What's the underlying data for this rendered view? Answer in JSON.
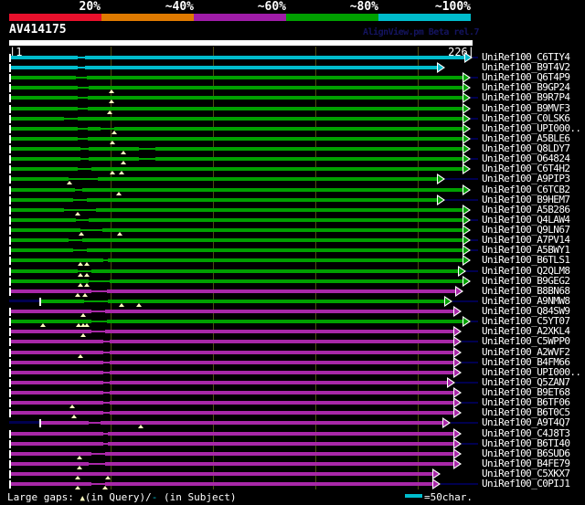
{
  "header": {
    "title": "AV414175",
    "watermark": "AlignView.pm Beta rel.7"
  },
  "scale_bar": {
    "labels": [
      "20%",
      "~40%",
      "~60%",
      "~80%",
      "~100%"
    ],
    "segment_colors": [
      "#e8102c",
      "#df7a00",
      "#a01ca8",
      "#00a000",
      "#00bccc"
    ]
  },
  "ruler": {
    "start_label": "|1",
    "end_label": "226|"
  },
  "footer": {
    "gaps_prefix": "Large gaps: ",
    "triangle_glyph": "▲",
    "gaps_mid": "(in Query)/",
    "dash_glyph": "-",
    "gaps_suffix": " (in Subject)",
    "scale_hint": "=50char."
  },
  "colors": {
    "cyan": "#00bccc",
    "green": "#00a000",
    "purple": "#a828a8",
    "navy": "#00004f",
    "tick": "#ffffff",
    "triangle": "#ffffc0",
    "gridline": "#4c4c10"
  },
  "rows": [
    {
      "label": "UniRef100_C6TIY4",
      "color": "cyan",
      "s": 10,
      "e": 517,
      "gaps": [
        [
          85,
          93
        ]
      ],
      "tris": [],
      "np": null,
      "ns": 523
    },
    {
      "label": "UniRef100_B9T4V2",
      "color": "cyan",
      "s": 10,
      "e": 487,
      "gaps": [
        [
          85,
          93
        ]
      ],
      "tris": [],
      "np": null,
      "ns": null
    },
    {
      "label": "UniRef100_Q6T4P9",
      "color": "green",
      "s": 10,
      "e": 515,
      "gaps": [
        [
          83,
          95
        ]
      ],
      "tris": [],
      "np": null,
      "ns": 523
    },
    {
      "label": "UniRef100_B9GP24",
      "color": "green",
      "s": 10,
      "e": 515,
      "gaps": [
        [
          85,
          97
        ]
      ],
      "tris": [
        122
      ],
      "np": null,
      "ns": null
    },
    {
      "label": "UniRef100_B9R7P4",
      "color": "green",
      "s": 10,
      "e": 515,
      "gaps": [
        [
          85,
          96
        ]
      ],
      "tris": [
        122
      ],
      "np": null,
      "ns": 523
    },
    {
      "label": "UniRef100_B9MVF3",
      "color": "green",
      "s": 10,
      "e": 515,
      "gaps": [
        [
          85,
          96
        ]
      ],
      "tris": [
        120
      ],
      "np": null,
      "ns": null
    },
    {
      "label": "UniRef100_C0LSK6",
      "color": "green",
      "s": 10,
      "e": 515,
      "gaps": [
        [
          70,
          85
        ]
      ],
      "tris": [],
      "np": null,
      "ns": 523
    },
    {
      "label": "UniRef100_UPI000..",
      "color": "green",
      "s": 10,
      "e": 515,
      "gaps": [
        [
          85,
          96
        ],
        [
          110,
          125
        ]
      ],
      "tris": [
        125
      ],
      "np": null,
      "ns": null
    },
    {
      "label": "UniRef100_A5BLE6",
      "color": "green",
      "s": 10,
      "e": 515,
      "gaps": [
        [
          85,
          96
        ]
      ],
      "tris": [
        123
      ],
      "np": null,
      "ns": 523
    },
    {
      "label": "UniRef100_Q8LDY7",
      "color": "green",
      "s": 10,
      "e": 515,
      "gaps": [
        [
          88,
          97
        ],
        [
          152,
          170
        ]
      ],
      "tris": [
        135
      ],
      "np": null,
      "ns": null
    },
    {
      "label": "UniRef100_O64824",
      "color": "green",
      "s": 10,
      "e": 515,
      "gaps": [
        [
          88,
          97
        ],
        [
          152,
          170
        ]
      ],
      "tris": [
        135
      ],
      "np": null,
      "ns": 523
    },
    {
      "label": "UniRef100_C6T4H2",
      "color": "green",
      "s": 10,
      "e": 515,
      "gaps": [
        [
          85,
          100
        ]
      ],
      "tris": [
        123,
        133
      ],
      "np": null,
      "ns": null
    },
    {
      "label": "UniRef100_A9PIP3",
      "color": "green",
      "s": 10,
      "e": 487,
      "gaps": [
        [
          75,
          107
        ]
      ],
      "tris": [
        76
      ],
      "np": null,
      "ns": 523
    },
    {
      "label": "UniRef100_C6TCB2",
      "color": "green",
      "s": 10,
      "e": 515,
      "gaps": [
        [
          82,
          90
        ]
      ],
      "tris": [
        130
      ],
      "np": null,
      "ns": null
    },
    {
      "label": "UniRef100_B9HEM7",
      "color": "green",
      "s": 10,
      "e": 487,
      "gaps": [
        [
          80,
          95
        ]
      ],
      "tris": [],
      "np": null,
      "ns": 523
    },
    {
      "label": "UniRef100_A5B286",
      "color": "green",
      "s": 10,
      "e": 515,
      "gaps": [
        [
          70,
          105
        ]
      ],
      "tris": [
        85
      ],
      "np": null,
      "ns": null
    },
    {
      "label": "UniRef100_Q4LAW4",
      "color": "green",
      "s": 10,
      "e": 515,
      "gaps": [
        [
          83,
          97
        ]
      ],
      "tris": [],
      "np": null,
      "ns": 523
    },
    {
      "label": "UniRef100_Q9LN67",
      "color": "green",
      "s": 10,
      "e": 515,
      "gaps": [
        [
          88,
          112
        ]
      ],
      "tris": [
        89,
        131
      ],
      "np": null,
      "ns": null
    },
    {
      "label": "UniRef100_A7PV14",
      "color": "green",
      "s": 10,
      "e": 515,
      "gaps": [
        [
          75,
          90
        ]
      ],
      "tris": [],
      "np": null,
      "ns": 523
    },
    {
      "label": "UniRef100_A5BWY1",
      "color": "green",
      "s": 10,
      "e": 515,
      "gaps": [
        [
          80,
          95
        ]
      ],
      "tris": [],
      "np": null,
      "ns": 523
    },
    {
      "label": "UniRef100_B6TLS1",
      "color": "green",
      "s": 10,
      "e": 515,
      "gaps": [
        [
          113,
          118
        ]
      ],
      "tris": [
        88,
        95
      ],
      "np": null,
      "ns": null
    },
    {
      "label": "UniRef100_Q2QLM8",
      "color": "green",
      "s": 10,
      "e": 510,
      "gaps": [
        [
          85,
          100
        ]
      ],
      "tris": [
        88,
        95
      ],
      "np": null,
      "ns": 523
    },
    {
      "label": "UniRef100_B9GEG2",
      "color": "green",
      "s": 10,
      "e": 515,
      "gaps": [
        [
          97,
          120
        ]
      ],
      "tris": [
        88,
        95
      ],
      "np": null,
      "ns": null
    },
    {
      "label": "UniRef100_B8BN68",
      "color": "purple",
      "s": 10,
      "e": 507,
      "gaps": [
        [
          100,
          117
        ]
      ],
      "tris": [
        85,
        93
      ],
      "np": null,
      "ns": null
    },
    {
      "label": "UniRef100_A9NMW8",
      "color": "green",
      "s": 43,
      "e": 495,
      "gaps": [
        [
          92,
          118
        ]
      ],
      "tris": [
        133,
        152
      ],
      "np": 10,
      "ns": 523
    },
    {
      "label": "UniRef100_Q84SW9",
      "color": "purple",
      "s": 10,
      "e": 505,
      "gaps": [
        [
          100,
          115
        ]
      ],
      "tris": [
        91
      ],
      "np": null,
      "ns": null
    },
    {
      "label": "UniRef100_C5YT07",
      "color": "green",
      "s": 10,
      "e": 515,
      "gaps": [
        [
          100,
          117
        ]
      ],
      "tris": [
        47,
        86,
        91,
        95
      ],
      "np": null,
      "ns": 523
    },
    {
      "label": "UniRef100_A2XKL4",
      "color": "purple",
      "s": 10,
      "e": 505,
      "gaps": [
        [
          100,
          115
        ]
      ],
      "tris": [
        91
      ],
      "np": null,
      "ns": null
    },
    {
      "label": "UniRef100_C5WPP0",
      "color": "purple",
      "s": 10,
      "e": 505,
      "gaps": [
        [
          113,
          120
        ]
      ],
      "tris": [],
      "np": null,
      "ns": 523
    },
    {
      "label": "UniRef100_A2WVF2",
      "color": "purple",
      "s": 10,
      "e": 505,
      "gaps": [
        [
          113,
          120
        ]
      ],
      "tris": [
        88
      ],
      "np": null,
      "ns": null
    },
    {
      "label": "UniRef100_B4FM66",
      "color": "purple",
      "s": 10,
      "e": 505,
      "gaps": [
        [
          113,
          120
        ]
      ],
      "tris": [],
      "np": null,
      "ns": 523
    },
    {
      "label": "UniRef100_UPI000..",
      "color": "purple",
      "s": 10,
      "e": 505,
      "gaps": [
        [
          113,
          120
        ]
      ],
      "tris": [],
      "np": null,
      "ns": null
    },
    {
      "label": "UniRef100_Q5ZAN7",
      "color": "purple",
      "s": 10,
      "e": 498,
      "gaps": [
        [
          113,
          120
        ]
      ],
      "tris": [],
      "np": null,
      "ns": 523
    },
    {
      "label": "UniRef100_B9ET68",
      "color": "purple",
      "s": 10,
      "e": 505,
      "gaps": [
        [
          113,
          120
        ]
      ],
      "tris": [],
      "np": null,
      "ns": null
    },
    {
      "label": "UniRef100_B6TF06",
      "color": "purple",
      "s": 10,
      "e": 505,
      "gaps": [
        [
          113,
          120
        ]
      ],
      "tris": [
        79
      ],
      "np": null,
      "ns": 523
    },
    {
      "label": "UniRef100_B6T0C5",
      "color": "purple",
      "s": 10,
      "e": 505,
      "gaps": [
        [
          113,
          120
        ]
      ],
      "tris": [
        81
      ],
      "np": null,
      "ns": null
    },
    {
      "label": "UniRef100_A9T4Q7",
      "color": "purple",
      "s": 43,
      "e": 493,
      "gaps": [
        [
          97,
          110
        ]
      ],
      "tris": [
        154
      ],
      "np": 10,
      "ns": 523
    },
    {
      "label": "UniRef100_C4J8T3",
      "color": "purple",
      "s": 10,
      "e": 505,
      "gaps": [
        [
          113,
          118
        ]
      ],
      "tris": [],
      "np": null,
      "ns": null
    },
    {
      "label": "UniRef100_B6TI40",
      "color": "purple",
      "s": 10,
      "e": 505,
      "gaps": [
        [
          113,
          118
        ]
      ],
      "tris": [],
      "np": null,
      "ns": 523
    },
    {
      "label": "UniRef100_B6SUD6",
      "color": "purple",
      "s": 10,
      "e": 505,
      "gaps": [
        [
          100,
          115
        ]
      ],
      "tris": [
        87
      ],
      "np": null,
      "ns": null
    },
    {
      "label": "UniRef100_B4FE79",
      "color": "purple",
      "s": 10,
      "e": 505,
      "gaps": [
        [
          97,
          115
        ]
      ],
      "tris": [
        87
      ],
      "np": null,
      "ns": null
    },
    {
      "label": "UniRef100_C5XKX7",
      "color": "purple",
      "s": 10,
      "e": 482,
      "gaps": [],
      "tris": [
        85,
        118
      ],
      "np": null,
      "ns": null
    },
    {
      "label": "UniRef100_C0PIJ1",
      "color": "purple",
      "s": 10,
      "e": 482,
      "gaps": [
        [
          100,
          115
        ]
      ],
      "tris": [
        85,
        115
      ],
      "np": null,
      "ns": 523
    }
  ],
  "chart_data": {
    "type": "table",
    "title": "AV414175",
    "query_length": 226,
    "identity_scale_bins": [
      "20%",
      "~40%",
      "~60%",
      "~80%",
      "~100%"
    ],
    "legend": {
      "large_gap_query": "▲",
      "large_gap_subject": "-",
      "scale_hint": "=50char."
    },
    "hits": [
      {
        "id": "UniRef100_C6TIY4",
        "identity_bin": "~100%",
        "align_start": 1,
        "align_end": 226
      },
      {
        "id": "UniRef100_B9T4V2",
        "identity_bin": "~100%",
        "align_start": 1,
        "align_end": 213
      },
      {
        "id": "UniRef100_Q6T4P9",
        "identity_bin": "~80%",
        "align_start": 1,
        "align_end": 225
      },
      {
        "id": "UniRef100_B9GP24",
        "identity_bin": "~80%",
        "align_start": 1,
        "align_end": 225
      },
      {
        "id": "UniRef100_B9R7P4",
        "identity_bin": "~80%",
        "align_start": 1,
        "align_end": 225
      },
      {
        "id": "UniRef100_B9MVF3",
        "identity_bin": "~80%",
        "align_start": 1,
        "align_end": 225
      },
      {
        "id": "UniRef100_C0LSK6",
        "identity_bin": "~80%",
        "align_start": 1,
        "align_end": 225
      },
      {
        "id": "UniRef100_UPI000..",
        "identity_bin": "~80%",
        "align_start": 1,
        "align_end": 225
      },
      {
        "id": "UniRef100_A5BLE6",
        "identity_bin": "~80%",
        "align_start": 1,
        "align_end": 225
      },
      {
        "id": "UniRef100_Q8LDY7",
        "identity_bin": "~80%",
        "align_start": 1,
        "align_end": 225
      },
      {
        "id": "UniRef100_O64824",
        "identity_bin": "~80%",
        "align_start": 1,
        "align_end": 225
      },
      {
        "id": "UniRef100_C6T4H2",
        "identity_bin": "~80%",
        "align_start": 1,
        "align_end": 225
      },
      {
        "id": "UniRef100_A9PIP3",
        "identity_bin": "~80%",
        "align_start": 1,
        "align_end": 213
      },
      {
        "id": "UniRef100_C6TCB2",
        "identity_bin": "~80%",
        "align_start": 1,
        "align_end": 225
      },
      {
        "id": "UniRef100_B9HEM7",
        "identity_bin": "~80%",
        "align_start": 1,
        "align_end": 213
      },
      {
        "id": "UniRef100_A5B286",
        "identity_bin": "~80%",
        "align_start": 1,
        "align_end": 225
      },
      {
        "id": "UniRef100_Q4LAW4",
        "identity_bin": "~80%",
        "align_start": 1,
        "align_end": 225
      },
      {
        "id": "UniRef100_Q9LN67",
        "identity_bin": "~80%",
        "align_start": 1,
        "align_end": 225
      },
      {
        "id": "UniRef100_A7PV14",
        "identity_bin": "~80%",
        "align_start": 1,
        "align_end": 225
      },
      {
        "id": "UniRef100_A5BWY1",
        "identity_bin": "~80%",
        "align_start": 1,
        "align_end": 225
      },
      {
        "id": "UniRef100_B6TLS1",
        "identity_bin": "~80%",
        "align_start": 1,
        "align_end": 225
      },
      {
        "id": "UniRef100_Q2QLM8",
        "identity_bin": "~80%",
        "align_start": 1,
        "align_end": 223
      },
      {
        "id": "UniRef100_B9GEG2",
        "identity_bin": "~80%",
        "align_start": 1,
        "align_end": 225
      },
      {
        "id": "UniRef100_B8BN68",
        "identity_bin": "~60%",
        "align_start": 1,
        "align_end": 222
      },
      {
        "id": "UniRef100_A9NMW8",
        "identity_bin": "~80%",
        "align_start": 16,
        "align_end": 216
      },
      {
        "id": "UniRef100_Q84SW9",
        "identity_bin": "~60%",
        "align_start": 1,
        "align_end": 221
      },
      {
        "id": "UniRef100_C5YT07",
        "identity_bin": "~80%",
        "align_start": 1,
        "align_end": 225
      },
      {
        "id": "UniRef100_A2XKL4",
        "identity_bin": "~60%",
        "align_start": 1,
        "align_end": 221
      },
      {
        "id": "UniRef100_C5WPP0",
        "identity_bin": "~60%",
        "align_start": 1,
        "align_end": 221
      },
      {
        "id": "UniRef100_A2WVF2",
        "identity_bin": "~60%",
        "align_start": 1,
        "align_end": 221
      },
      {
        "id": "UniRef100_B4FM66",
        "identity_bin": "~60%",
        "align_start": 1,
        "align_end": 221
      },
      {
        "id": "UniRef100_UPI000..",
        "identity_bin": "~60%",
        "align_start": 1,
        "align_end": 221
      },
      {
        "id": "UniRef100_Q5ZAN7",
        "identity_bin": "~60%",
        "align_start": 1,
        "align_end": 218
      },
      {
        "id": "UniRef100_B9ET68",
        "identity_bin": "~60%",
        "align_start": 1,
        "align_end": 221
      },
      {
        "id": "UniRef100_B6TF06",
        "identity_bin": "~60%",
        "align_start": 1,
        "align_end": 221
      },
      {
        "id": "UniRef100_B6T0C5",
        "identity_bin": "~60%",
        "align_start": 1,
        "align_end": 221
      },
      {
        "id": "UniRef100_A9T4Q7",
        "identity_bin": "~60%",
        "align_start": 16,
        "align_end": 215
      },
      {
        "id": "UniRef100_C4J8T3",
        "identity_bin": "~60%",
        "align_start": 1,
        "align_end": 221
      },
      {
        "id": "UniRef100_B6TI40",
        "identity_bin": "~60%",
        "align_start": 1,
        "align_end": 221
      },
      {
        "id": "UniRef100_B6SUD6",
        "identity_bin": "~60%",
        "align_start": 1,
        "align_end": 221
      },
      {
        "id": "UniRef100_B4FE79",
        "identity_bin": "~60%",
        "align_start": 1,
        "align_end": 221
      },
      {
        "id": "UniRef100_C5XKX7",
        "identity_bin": "~60%",
        "align_start": 1,
        "align_end": 210
      },
      {
        "id": "UniRef100_C0PIJ1",
        "identity_bin": "~60%",
        "align_start": 1,
        "align_end": 210
      }
    ]
  }
}
